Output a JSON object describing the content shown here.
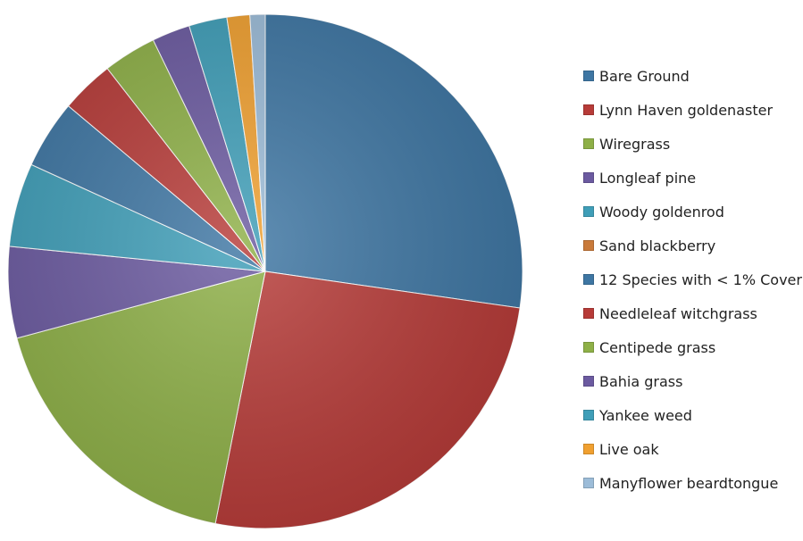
{
  "chart_data": {
    "type": "pie",
    "title": "",
    "legend_position": "right",
    "categories": [
      "Bare Ground",
      "Lynn Haven goldenaster",
      "Wiregrass",
      "Longleaf pine",
      "Woody goldenrod",
      "Sand blackberry",
      "12 Species with < 1% Cover",
      "Needleleaf witchgrass",
      "Centipede grass",
      "Bahia grass",
      "Yankee weed",
      "Live oak",
      "Manyflower beardtongue"
    ],
    "values": [
      28.5,
      27.0,
      18.5,
      6.0,
      5.5,
      0,
      4.5,
      3.5,
      3.5,
      2.5,
      2.5,
      1.5,
      1.0
    ],
    "colors": [
      "#3e76a3",
      "#b73b38",
      "#8eb047",
      "#6b5aa0",
      "#3f9eb8",
      "#c97a3a",
      "#3e76a3",
      "#b73b38",
      "#8eb047",
      "#6b5aa0",
      "#3f9eb8",
      "#f0a030",
      "#9cbcd8"
    ]
  }
}
